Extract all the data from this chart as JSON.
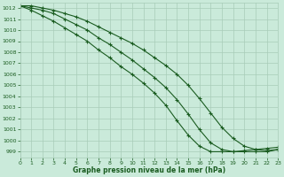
{
  "title": "Graphe pression niveau de la mer (hPa)",
  "bg_color": "#caeada",
  "grid_color": "#a8ccb8",
  "line_color": "#1a5c20",
  "text_color": "#1a5c20",
  "xlim": [
    0,
    23
  ],
  "ylim": [
    998.5,
    1012.5
  ],
  "yticks": [
    999,
    1000,
    1001,
    1002,
    1003,
    1004,
    1005,
    1006,
    1007,
    1008,
    1009,
    1010,
    1011,
    1012
  ],
  "xticks": [
    0,
    1,
    2,
    3,
    4,
    5,
    6,
    7,
    8,
    9,
    10,
    11,
    12,
    13,
    14,
    15,
    16,
    17,
    18,
    19,
    20,
    21,
    22,
    23
  ],
  "series": [
    [
      1012.2,
      1012.2,
      1012.0,
      1011.8,
      1011.5,
      1011.2,
      1010.8,
      1010.3,
      1009.8,
      1009.3,
      1008.8,
      1008.2,
      1007.5,
      1006.8,
      1006.0,
      1005.0,
      1003.8,
      1002.5,
      1001.2,
      1000.2,
      999.5,
      999.2,
      999.1,
      999.2
    ],
    [
      1012.2,
      1012.0,
      1011.8,
      1011.5,
      1011.0,
      1010.5,
      1010.0,
      1009.3,
      1008.7,
      1008.0,
      1007.3,
      1006.5,
      1005.7,
      1004.8,
      1003.7,
      1002.4,
      1001.0,
      999.8,
      999.2,
      999.0,
      999.0,
      999.0,
      999.0,
      999.2
    ],
    [
      1012.2,
      1011.8,
      1011.3,
      1010.8,
      1010.2,
      1009.6,
      1009.0,
      1008.2,
      1007.5,
      1006.7,
      1006.0,
      1005.2,
      1004.3,
      1003.2,
      1001.8,
      1000.5,
      999.5,
      999.0,
      999.0,
      999.0,
      999.1,
      999.2,
      999.3,
      999.4
    ]
  ]
}
